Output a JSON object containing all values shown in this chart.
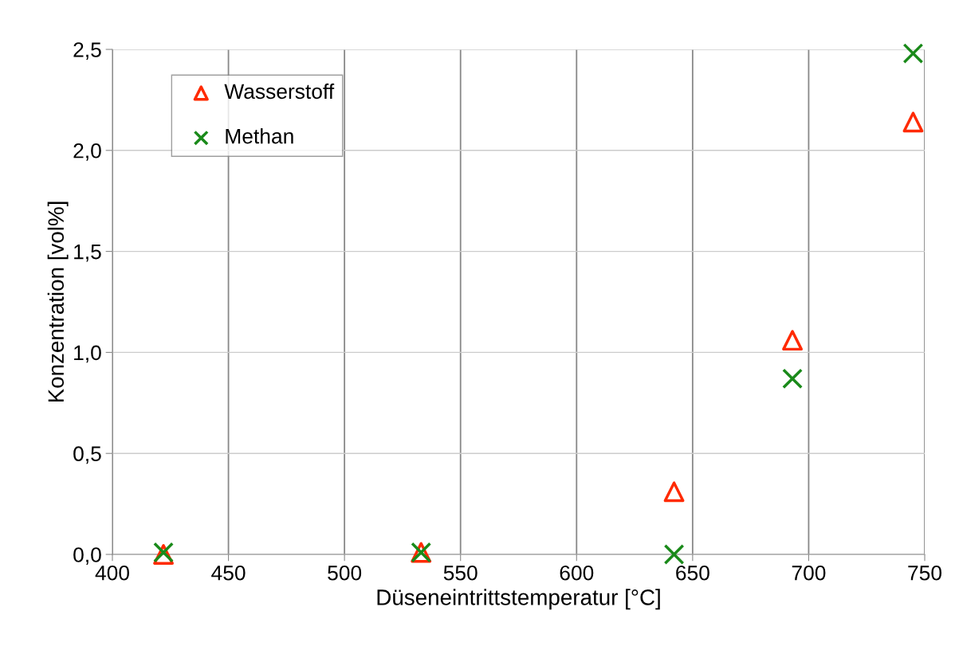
{
  "chart_data": {
    "type": "scatter",
    "xlabel": "Düseneintrittstemperatur [°C]",
    "ylabel": "Konzentration [vol%]",
    "xlim": [
      400,
      750
    ],
    "xticks": [
      400,
      450,
      500,
      550,
      600,
      650,
      700,
      750
    ],
    "ylim": [
      0,
      2.5
    ],
    "yticks": [
      {
        "value": 0,
        "label": "0,0"
      },
      {
        "value": 0.5,
        "label": "0,5"
      },
      {
        "value": 1,
        "label": "1,0"
      },
      {
        "value": 1.5,
        "label": "1,5"
      },
      {
        "value": 2,
        "label": "2,0"
      },
      {
        "value": 2.5,
        "label": "2,5"
      }
    ],
    "grid": true,
    "legend": "top left",
    "series": [
      {
        "name": "Wasserstoff",
        "color": "#ff2a00",
        "marker": "triangle",
        "x": [
          422,
          533,
          642,
          693,
          745
        ],
        "values": [
          0.0,
          0.01,
          0.31,
          1.06,
          2.14
        ]
      },
      {
        "name": "Methan",
        "color": "#1a8a1a",
        "marker": "cross",
        "x": [
          422,
          533,
          642,
          693,
          745
        ],
        "values": [
          0.01,
          0.01,
          0.0,
          0.87,
          2.48
        ]
      }
    ]
  }
}
